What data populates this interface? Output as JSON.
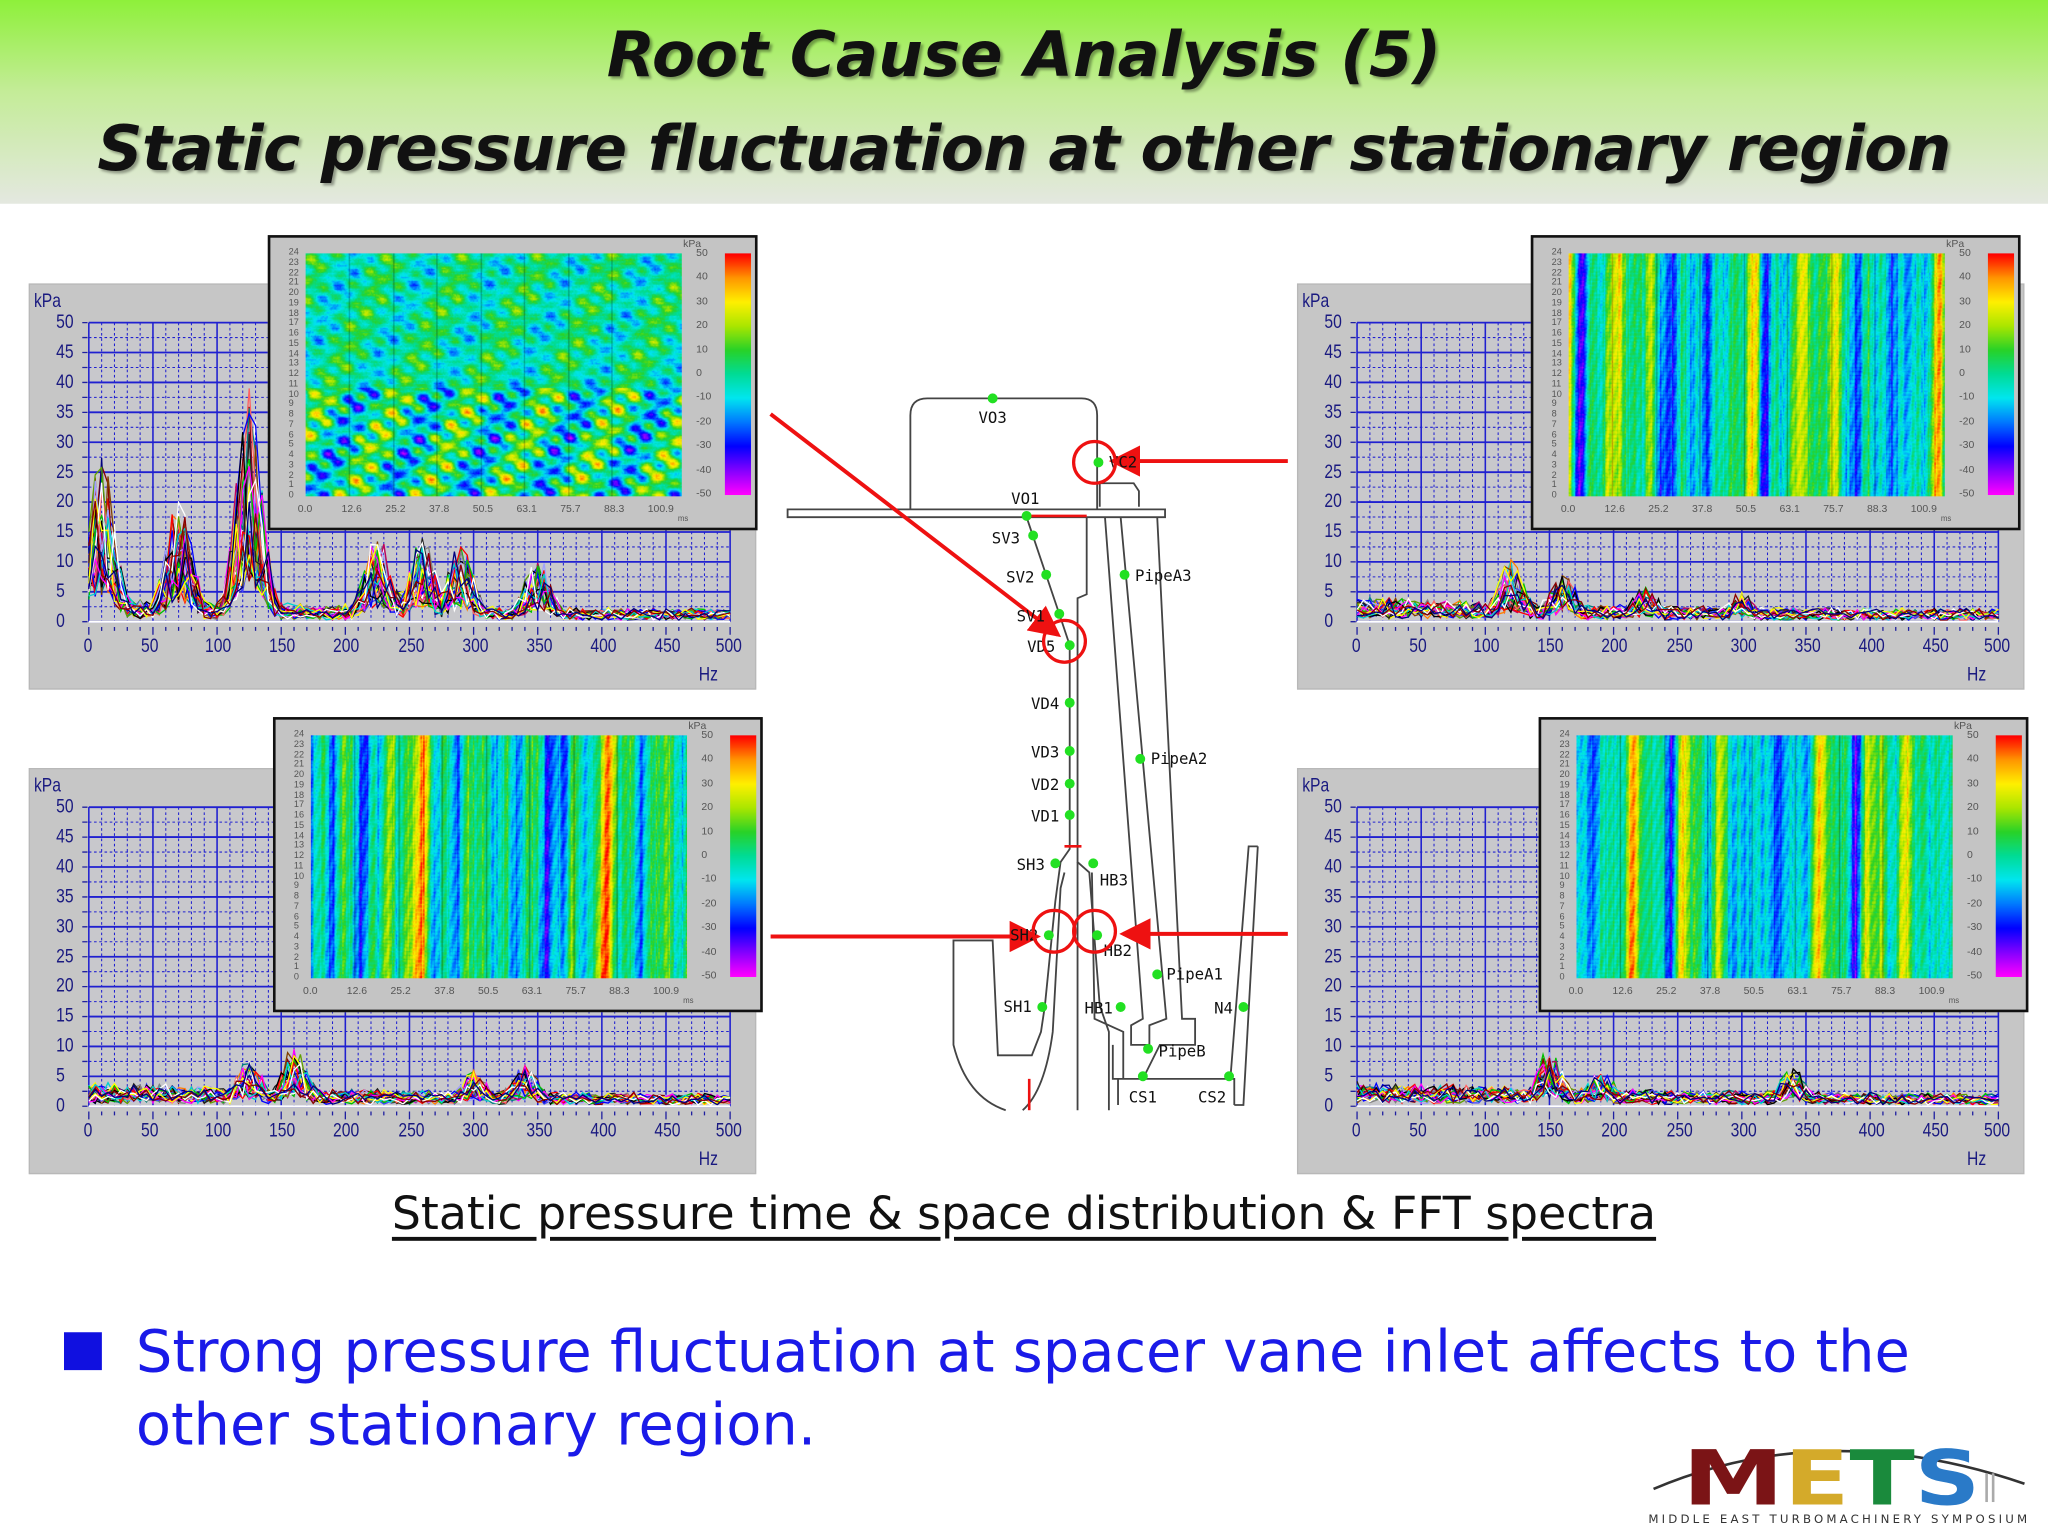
{
  "header": {
    "title_line1": "Root Cause Analysis (5)",
    "title_line2": "Static pressure fluctuation at other stationary region"
  },
  "caption": "Static pressure time & space distribution & FFT spectra",
  "bullet": {
    "icon": "square-bullet-icon",
    "text": "Strong pressure fluctuation at spacer vane inlet affects to the other stationary region.",
    "color": "#1a1ae8"
  },
  "logo": {
    "text": "METS",
    "suffix": "II",
    "subtitle": "MIDDLE EAST TURBOMACHINERY SYMPOSIUM",
    "colors": [
      "#7b1416",
      "#d4aa2a",
      "#1a8a3c",
      "#2a7ac8"
    ]
  },
  "diagram": {
    "labels": [
      "VO3",
      "VC2",
      "VO1",
      "SV3",
      "SV2",
      "SV1",
      "VD5",
      "VD4",
      "VD3",
      "VD2",
      "VD1",
      "SH3",
      "HB3",
      "SH2",
      "HB2",
      "PipeA3",
      "PipeA2",
      "PipeA1",
      "SH1",
      "HB1",
      "N4",
      "PipeB",
      "CS1",
      "CS2"
    ],
    "highlighted": [
      "VC2",
      "VD5",
      "SH2",
      "HB2"
    ],
    "point_color": "#22e022",
    "highlight_color": "#ee1111"
  },
  "chart_data": [
    {
      "type": "line",
      "panel": "top-left",
      "measurement_point": "VD5",
      "xlabel": "Hz",
      "ylabel": "kPa",
      "xlim": [
        0,
        500
      ],
      "ylim": [
        0,
        50
      ],
      "xticks": [
        "0",
        "50",
        "100",
        "150",
        "200",
        "250",
        "300",
        "350",
        "400",
        "450",
        "500"
      ],
      "yticks": [
        "0",
        "5",
        "10",
        "15",
        "20",
        "25",
        "30",
        "35",
        "40",
        "45",
        "50"
      ],
      "grid": true,
      "envelope_peaks": [
        {
          "x": 10,
          "y": 27
        },
        {
          "x": 70,
          "y": 20
        },
        {
          "x": 125,
          "y": 38
        },
        {
          "x": 225,
          "y": 14
        },
        {
          "x": 260,
          "y": 13
        },
        {
          "x": 290,
          "y": 13
        },
        {
          "x": 350,
          "y": 10
        }
      ]
    },
    {
      "type": "line",
      "panel": "top-right",
      "measurement_point": "VC2",
      "xlabel": "Hz",
      "ylabel": "kPa",
      "xlim": [
        0,
        500
      ],
      "ylim": [
        0,
        50
      ],
      "xticks": [
        "0",
        "50",
        "100",
        "150",
        "200",
        "250",
        "300",
        "350",
        "400",
        "450",
        "500"
      ],
      "yticks": [
        "0",
        "5",
        "10",
        "15",
        "20",
        "25",
        "30",
        "35",
        "40",
        "45",
        "50"
      ],
      "grid": true,
      "envelope_peaks": [
        {
          "x": 120,
          "y": 10
        },
        {
          "x": 160,
          "y": 8
        },
        {
          "x": 225,
          "y": 5
        },
        {
          "x": 300,
          "y": 4
        }
      ]
    },
    {
      "type": "line",
      "panel": "bottom-left",
      "measurement_point": "SH2",
      "xlabel": "Hz",
      "ylabel": "kPa",
      "xlim": [
        0,
        500
      ],
      "ylim": [
        0,
        50
      ],
      "xticks": [
        "0",
        "50",
        "100",
        "150",
        "200",
        "250",
        "300",
        "350",
        "400",
        "450",
        "500"
      ],
      "yticks": [
        "0",
        "5",
        "10",
        "15",
        "20",
        "25",
        "30",
        "35",
        "40",
        "45",
        "50"
      ],
      "grid": true,
      "envelope_peaks": [
        {
          "x": 125,
          "y": 7
        },
        {
          "x": 160,
          "y": 9
        },
        {
          "x": 300,
          "y": 5
        },
        {
          "x": 340,
          "y": 6
        }
      ]
    },
    {
      "type": "line",
      "panel": "bottom-right",
      "measurement_point": "HB2",
      "xlabel": "Hz",
      "ylabel": "kPa",
      "xlim": [
        0,
        500
      ],
      "ylim": [
        0,
        50
      ],
      "xticks": [
        "0",
        "50",
        "100",
        "150",
        "200",
        "250",
        "300",
        "350",
        "400",
        "450",
        "500"
      ],
      "yticks": [
        "0",
        "5",
        "10",
        "15",
        "20",
        "25",
        "30",
        "35",
        "40",
        "45",
        "50"
      ],
      "grid": true,
      "envelope_peaks": [
        {
          "x": 150,
          "y": 9
        },
        {
          "x": 190,
          "y": 5
        },
        {
          "x": 340,
          "y": 6
        }
      ]
    },
    {
      "type": "heatmap",
      "panel": "top-left-inset",
      "xlabel": "ms",
      "colorbar_label": "kPa",
      "pattern": "diagonal blobs",
      "xticks": [
        "0.0",
        "12.6",
        "25.2",
        "37.8",
        "50.5",
        "63.1",
        "75.7",
        "88.3",
        "100.9"
      ],
      "yticks": [
        "0",
        "1",
        "2",
        "3",
        "4",
        "5",
        "6",
        "7",
        "8",
        "9",
        "10",
        "11",
        "12",
        "13",
        "14",
        "15",
        "16",
        "17",
        "18",
        "19",
        "20",
        "21",
        "22",
        "23",
        "24"
      ],
      "colorbar_ticks": [
        "50",
        "40",
        "30",
        "20",
        "10",
        "0",
        "-10",
        "-20",
        "-30",
        "-40",
        "-50"
      ],
      "zlim": [
        -50,
        50
      ]
    },
    {
      "type": "heatmap",
      "panel": "top-right-inset",
      "xlabel": "ms",
      "colorbar_label": "kPa",
      "pattern": "vertical streaks",
      "xticks": [
        "0.0",
        "12.6",
        "25.2",
        "37.8",
        "50.5",
        "63.1",
        "75.7",
        "88.3",
        "100.9"
      ],
      "yticks": [
        "0",
        "1",
        "2",
        "3",
        "4",
        "5",
        "6",
        "7",
        "8",
        "9",
        "10",
        "11",
        "12",
        "13",
        "14",
        "15",
        "16",
        "17",
        "18",
        "19",
        "20",
        "21",
        "22",
        "23",
        "24"
      ],
      "colorbar_ticks": [
        "50",
        "40",
        "30",
        "20",
        "10",
        "0",
        "-10",
        "-20",
        "-30",
        "-40",
        "-50"
      ],
      "zlim": [
        -50,
        50
      ]
    },
    {
      "type": "heatmap",
      "panel": "bottom-left-inset",
      "xlabel": "ms",
      "colorbar_label": "kPa",
      "pattern": "vertical streaks",
      "xticks": [
        "0.0",
        "12.6",
        "25.2",
        "37.8",
        "50.5",
        "63.1",
        "75.7",
        "88.3",
        "100.9"
      ],
      "yticks": [
        "0",
        "1",
        "2",
        "3",
        "4",
        "5",
        "6",
        "7",
        "8",
        "9",
        "10",
        "11",
        "12",
        "13",
        "14",
        "15",
        "16",
        "17",
        "18",
        "19",
        "20",
        "21",
        "22",
        "23",
        "24"
      ],
      "colorbar_ticks": [
        "50",
        "40",
        "30",
        "20",
        "10",
        "0",
        "-10",
        "-20",
        "-30",
        "-40",
        "-50"
      ],
      "zlim": [
        -50,
        50
      ]
    },
    {
      "type": "heatmap",
      "panel": "bottom-right-inset",
      "xlabel": "ms",
      "colorbar_label": "kPa",
      "pattern": "vertical streaks",
      "xticks": [
        "0.0",
        "12.6",
        "25.2",
        "37.8",
        "50.5",
        "63.1",
        "75.7",
        "88.3",
        "100.9"
      ],
      "yticks": [
        "0",
        "1",
        "2",
        "3",
        "4",
        "5",
        "6",
        "7",
        "8",
        "9",
        "10",
        "11",
        "12",
        "13",
        "14",
        "15",
        "16",
        "17",
        "18",
        "19",
        "20",
        "21",
        "22",
        "23",
        "24"
      ],
      "colorbar_ticks": [
        "50",
        "40",
        "30",
        "20",
        "10",
        "0",
        "-10",
        "-20",
        "-30",
        "-40",
        "-50"
      ],
      "zlim": [
        -50,
        50
      ]
    }
  ]
}
